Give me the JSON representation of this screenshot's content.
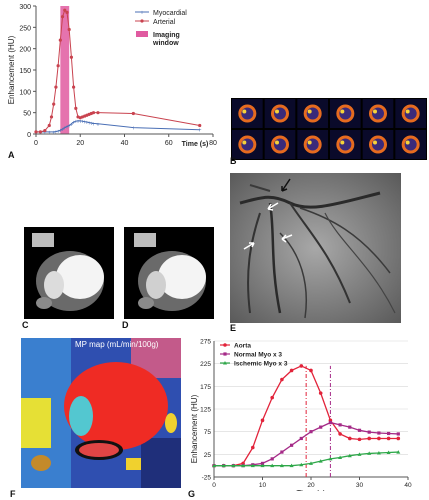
{
  "panel_labels": {
    "A": "A",
    "B": "B",
    "C": "C",
    "D": "D",
    "E": "E",
    "F": "F",
    "G": "G"
  },
  "chart_data": [
    {
      "type": "line",
      "ylabel": "Enhancement (HU)",
      "xlabel": "Time (s)",
      "xlim": [
        0,
        80
      ],
      "ylim": [
        0,
        300
      ],
      "xticks": [
        "0",
        "20",
        "40",
        "60",
        "80"
      ],
      "yticks": [
        "0",
        "50",
        "100",
        "150",
        "200",
        "250",
        "300"
      ],
      "legend_position": "top-right",
      "series": [
        {
          "name": "Myocardial",
          "color": "#4a6fb5",
          "x": [
            0,
            2,
            4,
            6,
            8,
            9,
            10,
            11,
            12,
            13,
            14,
            15,
            16,
            17,
            18,
            19,
            20,
            21,
            22,
            23,
            24,
            25,
            26,
            28,
            44,
            74
          ],
          "y": [
            5,
            5,
            5,
            5,
            5,
            6,
            7,
            9,
            12,
            15,
            18,
            20,
            24,
            28,
            30,
            31,
            31,
            30,
            29,
            28,
            27,
            26,
            25,
            24,
            15,
            10
          ]
        },
        {
          "name": "Arterial",
          "color": "#c9434f",
          "x": [
            0,
            2,
            4,
            6,
            7,
            8,
            9,
            10,
            11,
            12,
            13,
            14,
            15,
            16,
            17,
            18,
            19,
            20,
            21,
            22,
            23,
            24,
            25,
            26,
            28,
            44,
            74
          ],
          "y": [
            5,
            5,
            8,
            20,
            40,
            70,
            110,
            160,
            220,
            275,
            290,
            285,
            245,
            180,
            110,
            60,
            40,
            38,
            40,
            42,
            44,
            46,
            48,
            50,
            50,
            48,
            20
          ]
        }
      ],
      "shaded_region": {
        "label": "Imaging window",
        "x_range": [
          11,
          15
        ],
        "color": "#e05aa0"
      }
    },
    {
      "type": "line",
      "ylabel": "Enhancement (HU)",
      "xlabel": "Time (s)",
      "xlim": [
        0,
        40
      ],
      "ylim": [
        -25,
        275
      ],
      "xticks": [
        "0",
        "10",
        "20",
        "30",
        "40"
      ],
      "yticks": [
        "-25",
        "25",
        "75",
        "125",
        "175",
        "225",
        "275"
      ],
      "legend_position": "top-left",
      "series": [
        {
          "name": "Aorta",
          "color": "#e2233a",
          "x": [
            0,
            2,
            4,
            6,
            8,
            10,
            12,
            14,
            16,
            18,
            20,
            22,
            24,
            26,
            28,
            30,
            32,
            34,
            36,
            38
          ],
          "y": [
            0,
            0,
            0,
            5,
            40,
            100,
            150,
            190,
            210,
            220,
            210,
            160,
            100,
            70,
            60,
            58,
            60,
            60,
            60,
            60
          ]
        },
        {
          "name": "Normal Myo x 3",
          "color": "#a52a87",
          "x": [
            0,
            2,
            4,
            6,
            8,
            10,
            12,
            14,
            16,
            18,
            20,
            22,
            24,
            26,
            28,
            30,
            32,
            34,
            36,
            38
          ],
          "y": [
            0,
            0,
            0,
            0,
            2,
            5,
            15,
            30,
            45,
            60,
            75,
            85,
            95,
            90,
            85,
            78,
            74,
            72,
            71,
            70
          ]
        },
        {
          "name": "Ischemic Myo x 3",
          "color": "#2fa84a",
          "x": [
            0,
            2,
            4,
            6,
            8,
            10,
            12,
            14,
            16,
            18,
            20,
            22,
            24,
            26,
            28,
            30,
            32,
            34,
            36,
            38
          ],
          "y": [
            0,
            0,
            0,
            0,
            0,
            0,
            0,
            0,
            0,
            2,
            5,
            10,
            15,
            18,
            22,
            25,
            27,
            28,
            29,
            30
          ]
        }
      ],
      "markers_vertical": [
        {
          "x": 19,
          "color": "#e2233a"
        },
        {
          "x": 24,
          "color": "#a52a87"
        }
      ]
    }
  ],
  "perfusion_map": {
    "title": "MP map (mL/min/100g)"
  }
}
